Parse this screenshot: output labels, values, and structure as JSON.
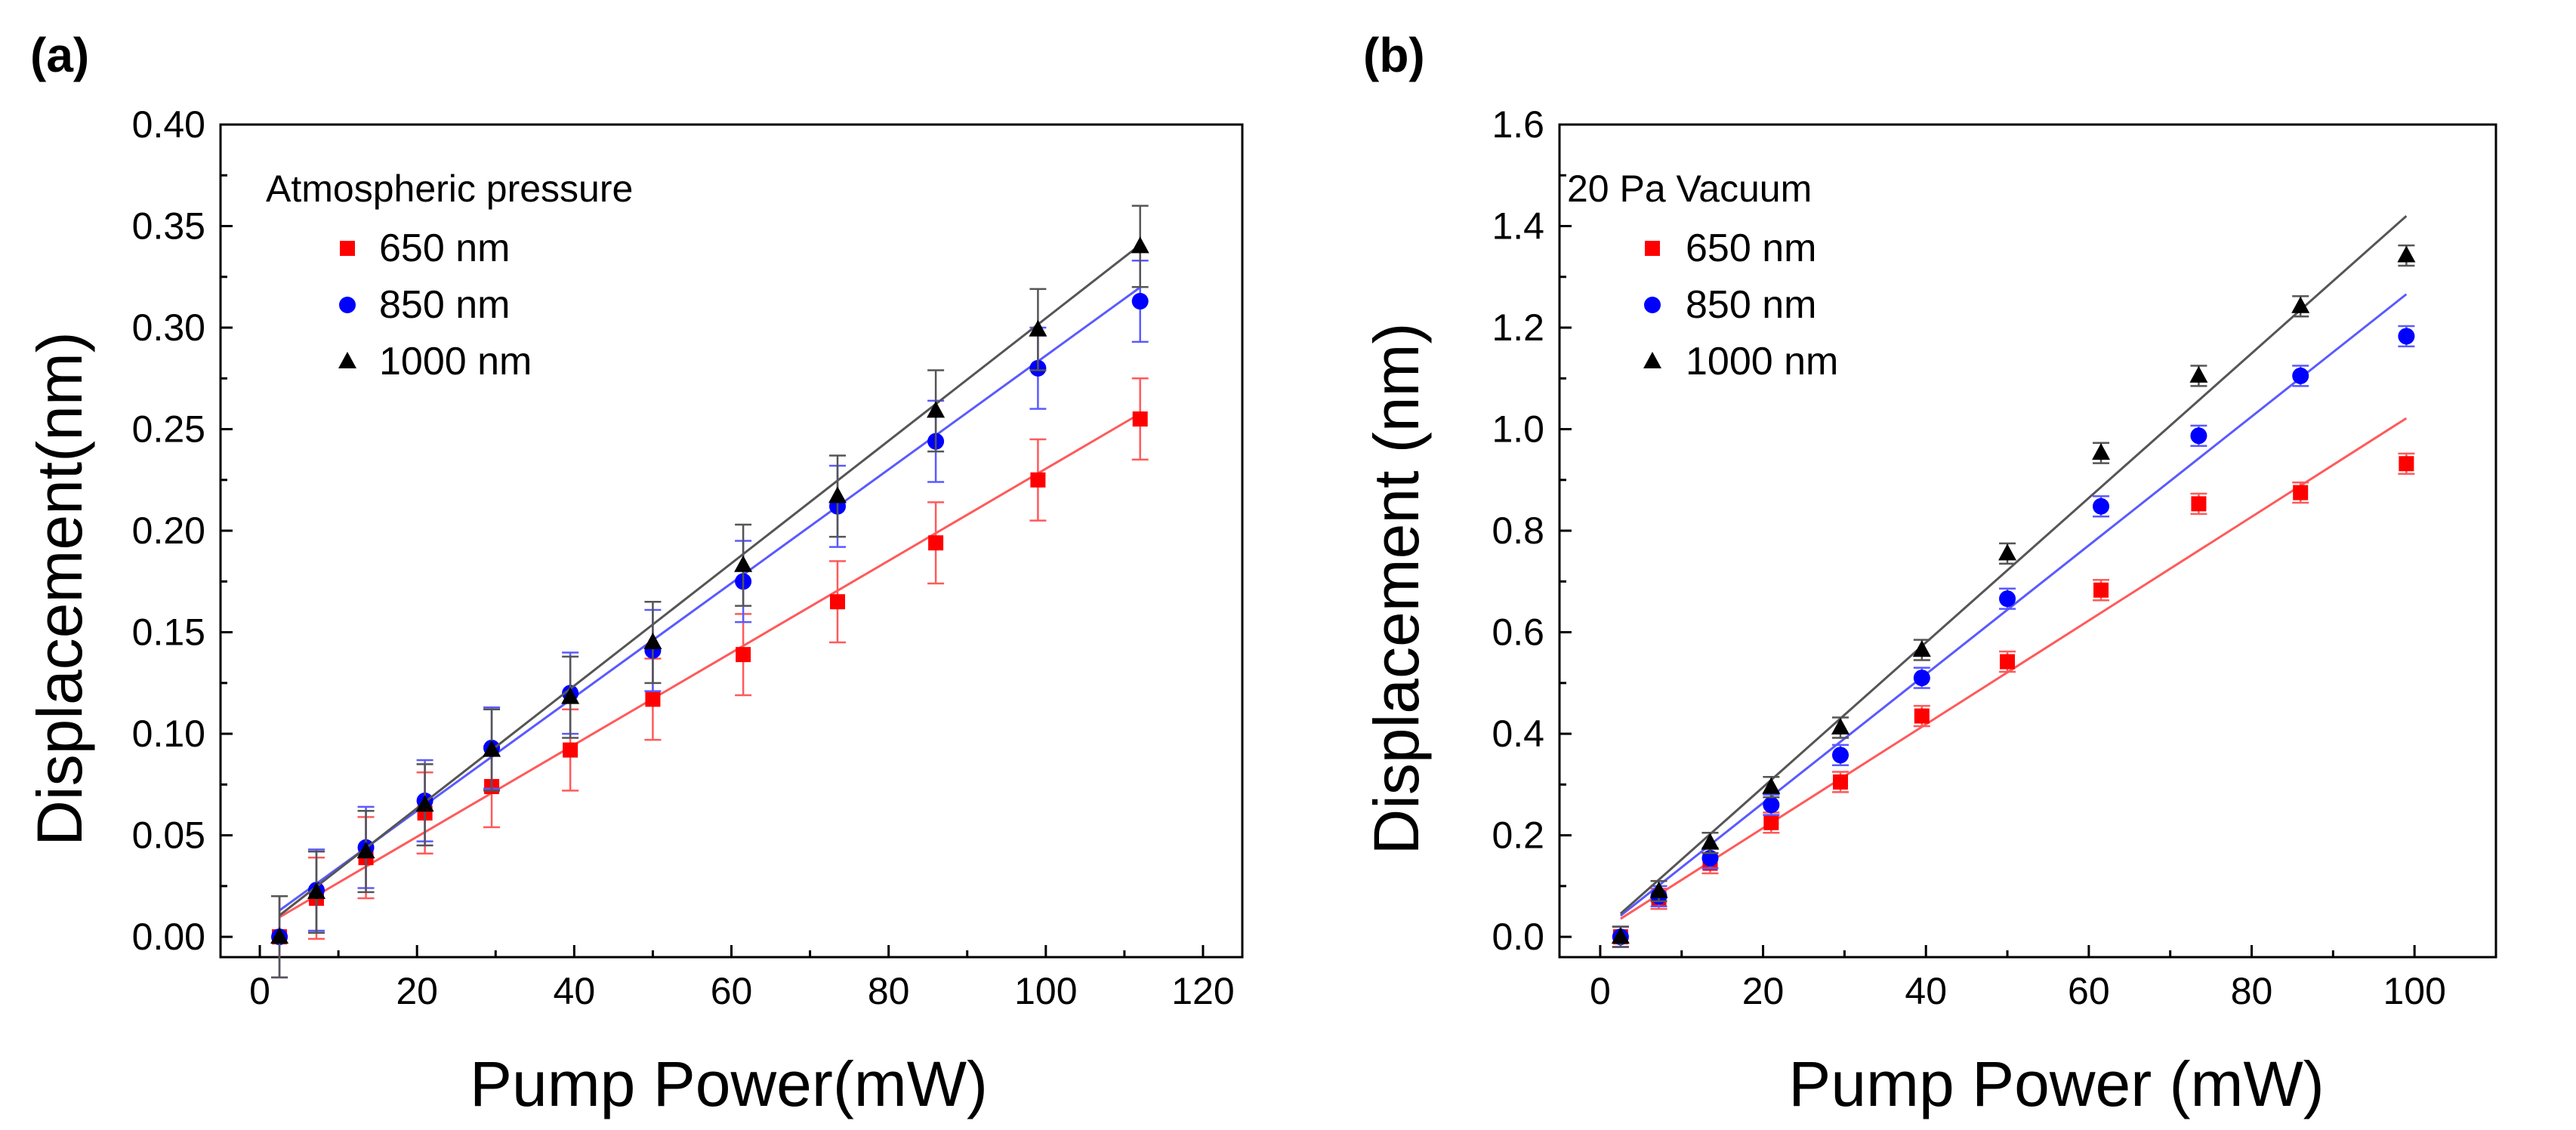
{
  "chart_data": [
    {
      "type": "scatter",
      "panel_label": "(a)",
      "xlabel": "Pump Power(mW)",
      "ylabel": "Displacement(nm)",
      "xlim": [
        -5,
        125
      ],
      "ylim": [
        -0.01,
        0.4
      ],
      "xticks": [
        0,
        20,
        40,
        60,
        80,
        100,
        120
      ],
      "xtick_labels": [
        "0",
        "20",
        "40",
        "60",
        "80",
        "100",
        "120"
      ],
      "yticks": [
        0,
        0.05,
        0.1,
        0.15,
        0.2,
        0.25,
        0.3,
        0.35,
        0.4
      ],
      "ytick_labels": [
        "0.00",
        "0.05",
        "0.10",
        "0.15",
        "0.20",
        "0.25",
        "0.30",
        "0.35",
        "0.40"
      ],
      "legend_title": "Atmospheric pressure",
      "legend_position": "top-left",
      "x": [
        2.5,
        7.2,
        13.5,
        21,
        29.5,
        39.5,
        50,
        61.5,
        73.5,
        86,
        99,
        112
      ],
      "series": [
        {
          "name": "650 nm",
          "color": "#ff0000",
          "fit_color": "#ff5a5a",
          "marker": "square",
          "values": [
            0,
            0.019,
            0.039,
            0.061,
            0.074,
            0.092,
            0.117,
            0.139,
            0.165,
            0.194,
            0.225,
            0.255
          ],
          "errors": [
            0.02,
            0.02,
            0.02,
            0.02,
            0.02,
            0.02,
            0.02,
            0.02,
            0.02,
            0.02,
            0.02,
            0.02
          ],
          "fit": [
            0.004,
            0.2265
          ]
        },
        {
          "name": "850 nm",
          "color": "#0000ff",
          "fit_color": "#5a5aff",
          "marker": "circle",
          "values": [
            0,
            0.023,
            0.044,
            0.067,
            0.093,
            0.12,
            0.141,
            0.175,
            0.212,
            0.244,
            0.28,
            0.313
          ],
          "errors": [
            0.02,
            0.02,
            0.02,
            0.02,
            0.02,
            0.02,
            0.02,
            0.02,
            0.02,
            0.02,
            0.02,
            0.02
          ],
          "fit": [
            0.006,
            0.2802
          ]
        },
        {
          "name": "1000 nm",
          "color": "#000000",
          "fit_color": "#555555",
          "marker": "triangle",
          "values": [
            0,
            0.022,
            0.042,
            0.065,
            0.092,
            0.118,
            0.145,
            0.183,
            0.217,
            0.259,
            0.299,
            0.34
          ],
          "errors": [
            0.02,
            0.02,
            0.02,
            0.02,
            0.02,
            0.02,
            0.02,
            0.02,
            0.02,
            0.02,
            0.02,
            0.02
          ],
          "fit": [
            0.003,
            0.3016
          ]
        }
      ]
    },
    {
      "type": "scatter",
      "panel_label": "(b)",
      "xlabel": "Pump Power (mW)",
      "ylabel": "Displacement (nm)",
      "xlim": [
        -5,
        110
      ],
      "ylim": [
        -0.04,
        1.6
      ],
      "xticks": [
        0,
        20,
        40,
        60,
        80,
        100
      ],
      "xtick_labels": [
        "0",
        "20",
        "40",
        "60",
        "80",
        "100"
      ],
      "yticks": [
        0,
        0.2,
        0.4,
        0.6,
        0.8,
        1.0,
        1.2,
        1.4,
        1.6
      ],
      "ytick_labels": [
        "0.0",
        "0.2",
        "0.4",
        "0.6",
        "0.8",
        "1.0",
        "1.2",
        "1.4",
        "1.6"
      ],
      "legend_title": "20 Pa Vacuum",
      "legend_position": "top-left",
      "x": [
        2.5,
        7.2,
        13.5,
        21,
        29.5,
        39.5,
        50,
        61.5,
        73.5,
        86,
        99
      ],
      "series": [
        {
          "name": "650 nm",
          "color": "#ff0000",
          "fit_color": "#ff5a5a",
          "marker": "square",
          "values": [
            0,
            0.075,
            0.145,
            0.225,
            0.305,
            0.435,
            0.542,
            0.683,
            0.853,
            0.875,
            0.932
          ],
          "errors": [
            0.02,
            0.02,
            0.02,
            0.02,
            0.02,
            0.02,
            0.02,
            0.02,
            0.02,
            0.02,
            0.02
          ],
          "fit": [
            0.01,
            1.0217
          ]
        },
        {
          "name": "850 nm",
          "color": "#0000ff",
          "fit_color": "#5a5aff",
          "marker": "circle",
          "values": [
            0,
            0.08,
            0.155,
            0.26,
            0.358,
            0.51,
            0.666,
            0.848,
            0.987,
            1.105,
            1.183
          ],
          "errors": [
            0.02,
            0.02,
            0.02,
            0.02,
            0.02,
            0.02,
            0.02,
            0.02,
            0.02,
            0.02,
            0.02
          ],
          "fit": [
            0.01,
            1.2685
          ]
        },
        {
          "name": "1000 nm",
          "color": "#000000",
          "fit_color": "#555555",
          "marker": "triangle",
          "values": [
            0,
            0.09,
            0.185,
            0.295,
            0.412,
            0.565,
            0.755,
            0.953,
            1.105,
            1.242,
            1.342
          ],
          "errors": [
            0.02,
            0.02,
            0.02,
            0.02,
            0.02,
            0.02,
            0.02,
            0.02,
            0.02,
            0.02,
            0.02
          ],
          "fit": [
            0.01,
            1.4242
          ]
        }
      ]
    }
  ]
}
